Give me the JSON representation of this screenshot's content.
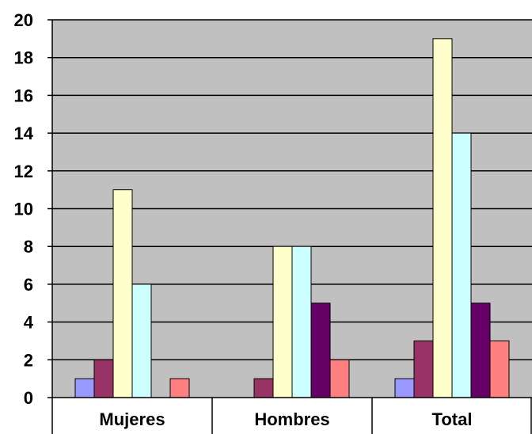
{
  "chart_data": {
    "type": "bar",
    "title": "",
    "xlabel": "",
    "ylabel": "",
    "categories": [
      "Mujeres",
      "Hombres",
      "Total"
    ],
    "ylim": [
      0,
      20
    ],
    "yticks": [
      "0",
      "2",
      "4",
      "6",
      "8",
      "10",
      "12",
      "14",
      "16",
      "18",
      "20"
    ],
    "grid": true,
    "legend": "none",
    "plot_background": "#C0C0C0",
    "series": [
      {
        "color": "#9999FF",
        "values": [
          1,
          0,
          1
        ]
      },
      {
        "color": "#993366",
        "values": [
          2,
          1,
          3
        ]
      },
      {
        "color": "#FFFFCC",
        "values": [
          11,
          8,
          19
        ]
      },
      {
        "color": "#CCFFFF",
        "values": [
          6,
          8,
          14
        ]
      },
      {
        "color": "#660066",
        "values": [
          0,
          5,
          5
        ]
      },
      {
        "color": "#FF8080",
        "values": [
          1,
          2,
          3
        ]
      }
    ]
  }
}
